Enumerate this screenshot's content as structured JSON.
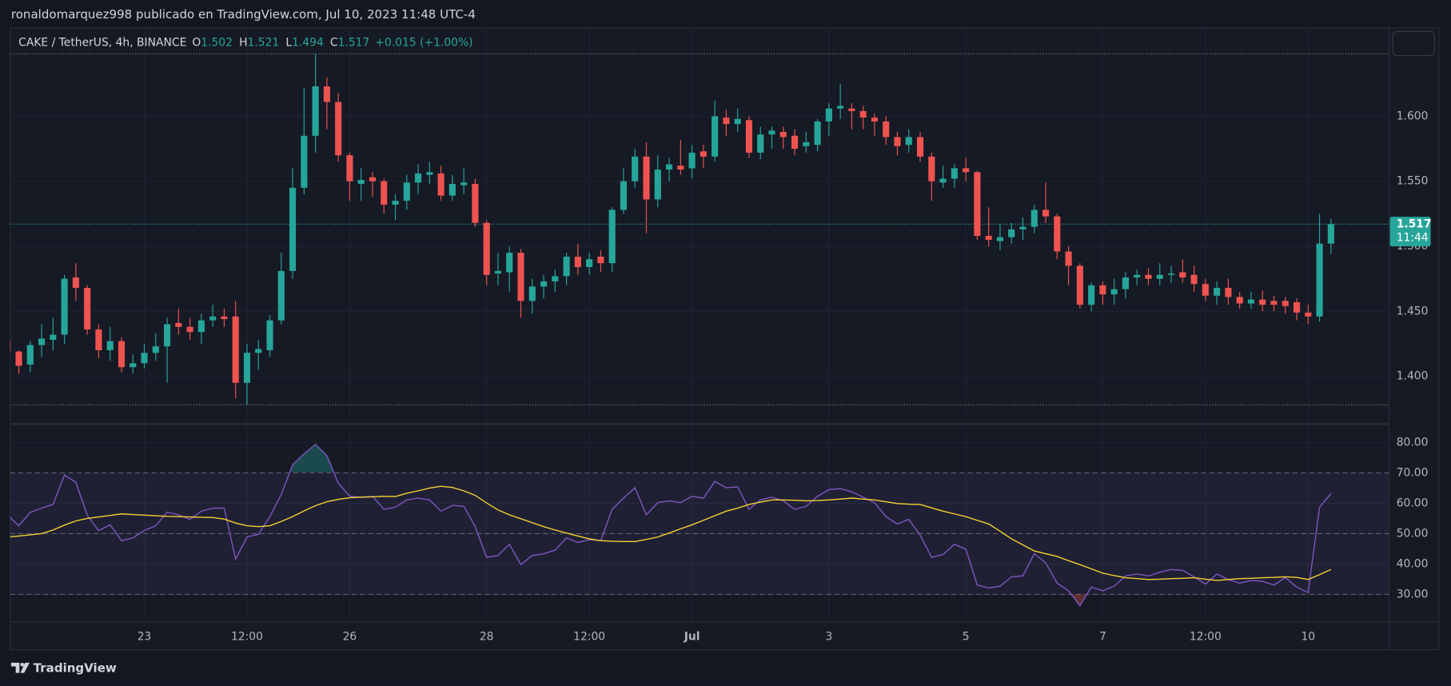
{
  "header": "ronaldomarquez998 publicado en TradingView.com, Jul 10, 2023 11:48 UTC-4",
  "footer": "TradingView",
  "chart_data": [
    {
      "type": "candlestick",
      "symbol": "CAKE / TetherUS, 4h, BINANCE",
      "ohlc_labels": [
        "O",
        "H",
        "L",
        "C"
      ],
      "ohlc_values": [
        "1.502",
        "1.521",
        "1.494",
        "1.517"
      ],
      "change": "+0.015 (+1.00%)",
      "last_price_label": "1.517",
      "countdown": "11:44",
      "up_color": "#26a69a",
      "down_color": "#ef5350",
      "categories": [
        null,
        null,
        null,
        null,
        null,
        null,
        null,
        null,
        null,
        null,
        null,
        null,
        "23",
        null,
        null,
        null,
        null,
        null,
        null,
        null,
        null,
        "12:00",
        null,
        null,
        null,
        null,
        null,
        null,
        null,
        null,
        "26",
        null,
        null,
        null,
        null,
        null,
        null,
        null,
        null,
        null,
        null,
        null,
        "28",
        null,
        null,
        null,
        null,
        null,
        null,
        null,
        null,
        "12:00",
        null,
        null,
        null,
        null,
        null,
        null,
        null,
        null,
        "Jul",
        null,
        null,
        null,
        null,
        null,
        null,
        null,
        null,
        null,
        null,
        null,
        "3",
        null,
        null,
        null,
        null,
        null,
        null,
        null,
        null,
        null,
        null,
        null,
        "5",
        null,
        null,
        null,
        null,
        null,
        null,
        null,
        null,
        null,
        null,
        null,
        "7",
        null,
        null,
        null,
        null,
        null,
        null,
        null,
        null,
        "12:00",
        null,
        null,
        null,
        null,
        null,
        null,
        null,
        null,
        "10",
        null,
        null
      ],
      "open": [
        1.428,
        1.419,
        1.409,
        1.424,
        1.428,
        1.432,
        1.476,
        1.468,
        1.436,
        1.42,
        1.427,
        1.407,
        1.41,
        1.418,
        1.423,
        1.441,
        1.438,
        1.434,
        1.443,
        1.446,
        1.446,
        1.395,
        1.418,
        1.42,
        1.443,
        1.481,
        1.545,
        1.585,
        1.623,
        1.611,
        1.57,
        1.548,
        1.553,
        1.55,
        1.532,
        1.535,
        1.549,
        1.555,
        1.556,
        1.539,
        1.547,
        1.548,
        1.518,
        1.479,
        1.48,
        1.495,
        1.458,
        1.469,
        1.473,
        1.477,
        1.492,
        1.484,
        1.492,
        1.487,
        1.528,
        1.55,
        1.569,
        1.536,
        1.559,
        1.562,
        1.56,
        1.573,
        1.569,
        1.599,
        1.594,
        1.597,
        1.572,
        1.586,
        1.588,
        1.585,
        1.577,
        1.578,
        1.596,
        1.606,
        1.606,
        1.604,
        1.599,
        1.596,
        1.584,
        1.578,
        1.584,
        1.569,
        1.549,
        1.552,
        1.56,
        1.557,
        1.508,
        1.504,
        1.507,
        1.513,
        1.515,
        1.528,
        1.523,
        1.496,
        1.485,
        1.455,
        1.47,
        1.463,
        1.467,
        1.476,
        1.478,
        1.475,
        1.478,
        1.48,
        1.478,
        1.471,
        1.462,
        1.468,
        1.461,
        1.456,
        1.459,
        1.458,
        1.458,
        1.457,
        1.449,
        1.446,
        1.502
      ],
      "high": [
        1.43,
        1.42,
        1.427,
        1.44,
        1.445,
        1.478,
        1.487,
        1.47,
        1.44,
        1.438,
        1.43,
        1.417,
        1.425,
        1.433,
        1.445,
        1.452,
        1.445,
        1.448,
        1.455,
        1.452,
        1.458,
        1.425,
        1.428,
        1.447,
        1.495,
        1.56,
        1.622,
        1.648,
        1.63,
        1.618,
        1.572,
        1.56,
        1.557,
        1.552,
        1.54,
        1.555,
        1.563,
        1.565,
        1.562,
        1.555,
        1.56,
        1.552,
        1.52,
        1.495,
        1.5,
        1.498,
        1.475,
        1.478,
        1.482,
        1.495,
        1.502,
        1.495,
        1.497,
        1.53,
        1.56,
        1.575,
        1.58,
        1.57,
        1.568,
        1.582,
        1.578,
        1.578,
        1.612,
        1.605,
        1.606,
        1.6,
        1.592,
        1.592,
        1.592,
        1.59,
        1.588,
        1.598,
        1.61,
        1.625,
        1.61,
        1.608,
        1.602,
        1.6,
        1.588,
        1.59,
        1.588,
        1.572,
        1.562,
        1.563,
        1.568,
        1.558,
        1.53,
        1.517,
        1.518,
        1.522,
        1.532,
        1.549,
        1.525,
        1.5,
        1.487,
        1.472,
        1.473,
        1.475,
        1.48,
        1.482,
        1.483,
        1.487,
        1.485,
        1.49,
        1.485,
        1.475,
        1.473,
        1.475,
        1.465,
        1.465,
        1.466,
        1.462,
        1.461,
        1.46,
        1.455,
        1.525,
        1.521
      ],
      "low": [
        1.414,
        1.402,
        1.403,
        1.415,
        1.42,
        1.425,
        1.458,
        1.432,
        1.414,
        1.412,
        1.403,
        1.402,
        1.406,
        1.412,
        1.395,
        1.432,
        1.428,
        1.425,
        1.438,
        1.438,
        1.383,
        1.378,
        1.405,
        1.415,
        1.44,
        1.475,
        1.54,
        1.572,
        1.59,
        1.565,
        1.535,
        1.535,
        1.538,
        1.525,
        1.52,
        1.528,
        1.54,
        1.548,
        1.535,
        1.535,
        1.54,
        1.515,
        1.47,
        1.47,
        1.465,
        1.445,
        1.448,
        1.46,
        1.465,
        1.47,
        1.478,
        1.478,
        1.48,
        1.48,
        1.525,
        1.545,
        1.51,
        1.53,
        1.55,
        1.555,
        1.552,
        1.56,
        1.565,
        1.585,
        1.588,
        1.568,
        1.567,
        1.575,
        1.575,
        1.57,
        1.572,
        1.573,
        1.585,
        1.598,
        1.59,
        1.59,
        1.585,
        1.578,
        1.57,
        1.572,
        1.565,
        1.535,
        1.545,
        1.545,
        1.55,
        1.505,
        1.5,
        1.497,
        1.502,
        1.505,
        1.51,
        1.518,
        1.49,
        1.47,
        1.452,
        1.45,
        1.455,
        1.455,
        1.46,
        1.47,
        1.47,
        1.47,
        1.472,
        1.472,
        1.465,
        1.458,
        1.455,
        1.455,
        1.452,
        1.452,
        1.45,
        1.45,
        1.448,
        1.443,
        1.44,
        1.442,
        1.494
      ],
      "close": [
        1.419,
        1.408,
        1.424,
        1.429,
        1.432,
        1.475,
        1.468,
        1.436,
        1.42,
        1.427,
        1.407,
        1.41,
        1.418,
        1.423,
        1.44,
        1.438,
        1.434,
        1.443,
        1.446,
        1.444,
        1.395,
        1.418,
        1.421,
        1.443,
        1.481,
        1.545,
        1.585,
        1.623,
        1.611,
        1.57,
        1.55,
        1.551,
        1.55,
        1.532,
        1.535,
        1.549,
        1.556,
        1.557,
        1.539,
        1.548,
        1.549,
        1.518,
        1.478,
        1.481,
        1.495,
        1.458,
        1.469,
        1.473,
        1.477,
        1.492,
        1.484,
        1.49,
        1.487,
        1.528,
        1.55,
        1.569,
        1.536,
        1.559,
        1.563,
        1.559,
        1.572,
        1.569,
        1.6,
        1.594,
        1.598,
        1.572,
        1.586,
        1.589,
        1.584,
        1.575,
        1.58,
        1.596,
        1.606,
        1.608,
        1.604,
        1.599,
        1.596,
        1.584,
        1.577,
        1.584,
        1.569,
        1.55,
        1.552,
        1.56,
        1.557,
        1.508,
        1.505,
        1.507,
        1.513,
        1.515,
        1.528,
        1.523,
        1.496,
        1.485,
        1.455,
        1.47,
        1.463,
        1.467,
        1.476,
        1.478,
        1.475,
        1.478,
        1.479,
        1.476,
        1.471,
        1.462,
        1.468,
        1.461,
        1.456,
        1.459,
        1.455,
        1.455,
        1.454,
        1.449,
        1.446,
        1.502,
        1.517
      ],
      "ylim": [
        1.364,
        1.668
      ],
      "yticks": [
        {
          "value": 1.4,
          "label": "1.400"
        },
        {
          "value": 1.45,
          "label": "1.450"
        },
        {
          "value": 1.5,
          "label": "1.500"
        },
        {
          "value": 1.55,
          "label": "1.550"
        },
        {
          "value": 1.6,
          "label": "1.600"
        }
      ],
      "grid": true
    },
    {
      "type": "line",
      "series": [
        {
          "color": "#7e57c2",
          "values": [
            56.2,
            52.6,
            57,
            58.4,
            59.6,
            69.3,
            66.9,
            56,
            51,
            52.9,
            47.7,
            48.6,
            51,
            52.6,
            57.1,
            56.2,
            54.7,
            57.4,
            58.4,
            58.4,
            41.6,
            48.9,
            49.8,
            55.6,
            62.9,
            72.7,
            76.3,
            79.4,
            75.7,
            66.6,
            62.3,
            62,
            62.3,
            58,
            58.7,
            61.1,
            61.7,
            61.1,
            57.4,
            59.3,
            59,
            52.3,
            42.2,
            42.8,
            46.5,
            39.8,
            42.8,
            43.4,
            44.6,
            48.6,
            47.1,
            48,
            47.7,
            58,
            61.7,
            65.1,
            56.2,
            60.2,
            60.8,
            60.2,
            62.3,
            61.7,
            67.2,
            65.1,
            65.4,
            58,
            61.1,
            62,
            60.8,
            58,
            59,
            62.3,
            64.5,
            64.8,
            63.8,
            62,
            60.2,
            55.6,
            53.2,
            54.7,
            49.5,
            42.2,
            43.1,
            46.5,
            44.9,
            33.1,
            32.1,
            32.7,
            35.8,
            36.1,
            43.4,
            40.4,
            33.7,
            31.2,
            26.3,
            32.4,
            31.2,
            32.7,
            36.1,
            36.7,
            36.1,
            37.3,
            38.2,
            37.9,
            35.8,
            33.4,
            36.7,
            34.9,
            33.7,
            34.6,
            34.3,
            33.1,
            35.5,
            32.4,
            30.6,
            58.7,
            63.2
          ]
        },
        {
          "color": "#f5d130",
          "values": [
            48.9,
            49.2,
            49.6,
            50.0,
            51.2,
            52.8,
            54.2,
            55.0,
            55.5,
            56.0,
            56.5,
            56.3,
            56.1,
            55.9,
            55.7,
            55.6,
            55.5,
            55.4,
            55.3,
            54.8,
            53.5,
            52.6,
            52.3,
            52.6,
            54.0,
            55.6,
            57.5,
            59.2,
            60.5,
            61.3,
            61.8,
            62.0,
            62.1,
            62.3,
            62.2,
            63.3,
            64.1,
            65.0,
            65.6,
            65.2,
            64.1,
            62.6,
            60.1,
            57.8,
            56.2,
            54.9,
            53.6,
            52.3,
            51.2,
            50.2,
            49.2,
            48.3,
            47.7,
            47.5,
            47.4,
            47.4,
            48.1,
            48.9,
            50.2,
            51.6,
            52.9,
            54.4,
            55.9,
            57.4,
            58.4,
            59.6,
            60.4,
            61.1,
            61.1,
            61.0,
            60.8,
            60.9,
            61.1,
            61.4,
            61.7,
            61.4,
            61.1,
            60.5,
            59.9,
            59.7,
            59.6,
            58.5,
            57.4,
            56.5,
            55.6,
            54.4,
            53.2,
            50.8,
            48.3,
            46.3,
            44.3,
            43.4,
            42.5,
            41.1,
            39.8,
            38.4,
            37.0,
            36.2,
            35.5,
            35.2,
            34.9,
            35.0,
            35.2,
            35.3,
            35.5,
            35.0,
            34.6,
            34.9,
            35.2,
            35.3,
            35.5,
            35.6,
            35.8,
            35.6,
            34.9,
            36.5,
            38.2
          ]
        }
      ],
      "band": [
        30,
        70
      ],
      "midline": 50,
      "ylim": [
        20.9,
        85.8
      ],
      "yticks": [
        {
          "value": 30,
          "label": "30.00"
        },
        {
          "value": 40,
          "label": "40.00"
        },
        {
          "value": 50,
          "label": "50.00"
        },
        {
          "value": 60,
          "label": "60.00"
        },
        {
          "value": 70,
          "label": "70.00"
        },
        {
          "value": 80,
          "label": "80.00"
        }
      ],
      "grid": true
    }
  ]
}
